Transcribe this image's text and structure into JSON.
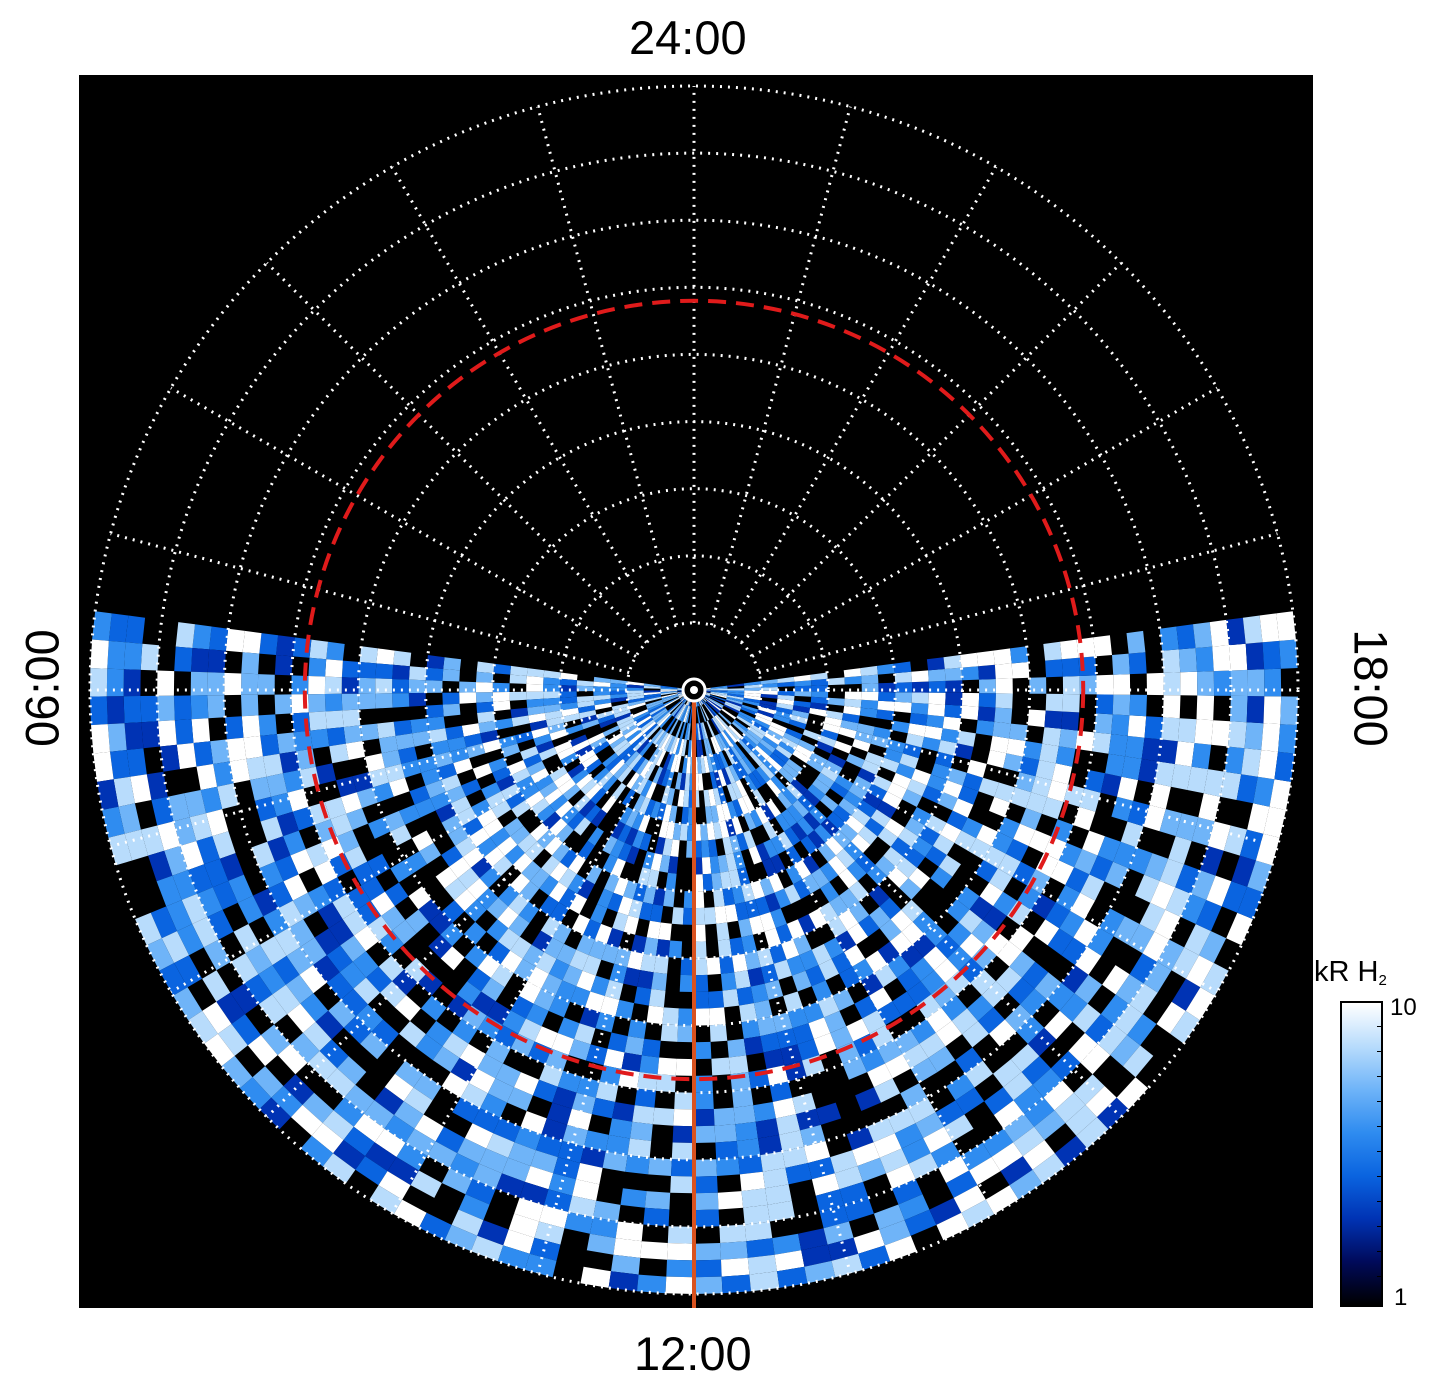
{
  "chart_data": {
    "type": "heatmap",
    "projection": "polar, north pole centered",
    "theta_labels": [
      "24:00",
      "06:00",
      "12:00",
      "18:00"
    ],
    "colorbar": {
      "label_main": "kR H",
      "label_sub": "2",
      "min": 1,
      "max": 10,
      "scale": "log",
      "tick_min_label": "1",
      "tick_max_label": "10",
      "colors": [
        "#000000",
        "#000a5a",
        "#0033b4",
        "#0a64e0",
        "#2f8cf0",
        "#6fb4f8",
        "#b8dcfc",
        "#ffffff"
      ]
    },
    "latitude_circles_deg": [
      10,
      20,
      30,
      40,
      50,
      60,
      70,
      80,
      90
    ],
    "local_time_meridians_h": [
      0,
      1,
      2,
      3,
      4,
      5,
      6,
      7,
      8,
      9,
      10,
      11,
      12,
      13,
      14,
      15,
      16,
      17,
      18,
      19,
      20,
      21,
      22,
      23
    ],
    "reference_circle_colatitude_deg": 50,
    "meridian_line_local_time": "12:00",
    "data_region": "dayside hemisphere (06:00 through 12:00 to 18:00), patchy brightness 1-10 kR",
    "colors": {
      "grid": "#ffffff",
      "reference_circle": "#e01b1b",
      "meridian_line": "#d9521f",
      "background": "#000000"
    }
  }
}
